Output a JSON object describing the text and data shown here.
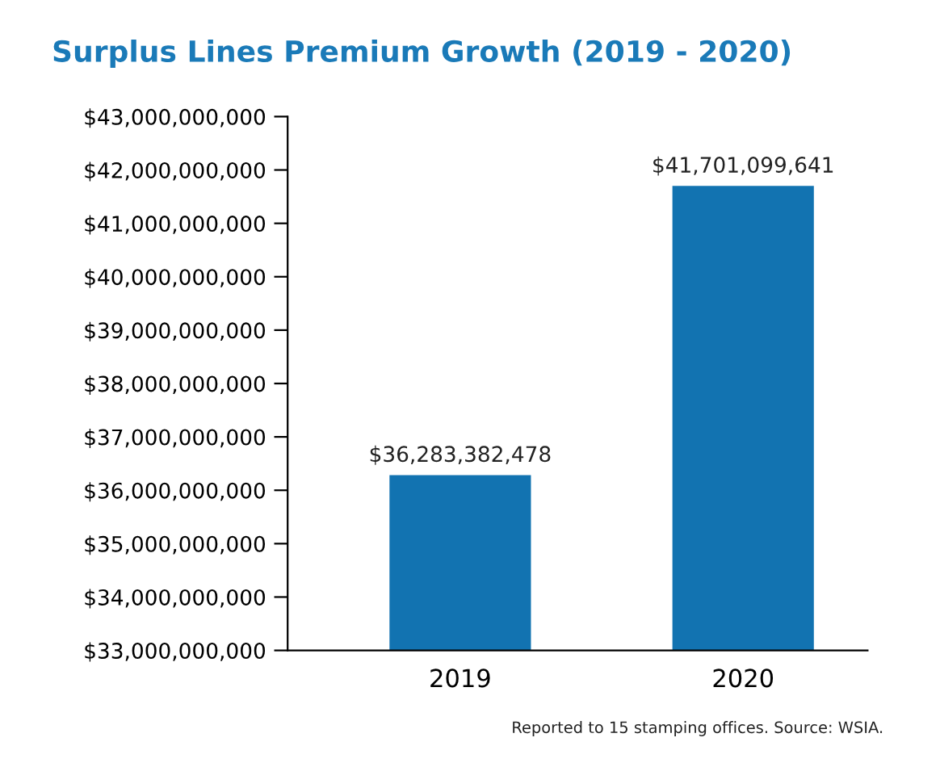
{
  "chart_data": {
    "type": "bar",
    "title": "Surplus Lines Premium Growth (2019 - 2020)",
    "categories": [
      "2019",
      "2020"
    ],
    "series": [
      {
        "color": "#1273b1",
        "values": [
          36283382478,
          41701099641
        ],
        "value_labels": [
          "$36,283,382,478",
          "$41,701,099,641"
        ]
      }
    ],
    "ylim": [
      33000000000,
      43000000000
    ],
    "yticks": [
      {
        "value": 33000000000,
        "label": "$33,000,000,000"
      },
      {
        "value": 34000000000,
        "label": "$34,000,000,000"
      },
      {
        "value": 35000000000,
        "label": "$35,000,000,000"
      },
      {
        "value": 36000000000,
        "label": "$36,000,000,000"
      },
      {
        "value": 37000000000,
        "label": "$37,000,000,000"
      },
      {
        "value": 38000000000,
        "label": "$38,000,000,000"
      },
      {
        "value": 39000000000,
        "label": "$39,000,000,000"
      },
      {
        "value": 40000000000,
        "label": "$40,000,000,000"
      },
      {
        "value": 41000000000,
        "label": "$41,000,000,000"
      },
      {
        "value": 42000000000,
        "label": "$42,000,000,000"
      },
      {
        "value": 43000000000,
        "label": "$43,000,000,000"
      }
    ],
    "annotations": [
      "Reported to 15 stamping offices. Source: WSIA."
    ]
  }
}
